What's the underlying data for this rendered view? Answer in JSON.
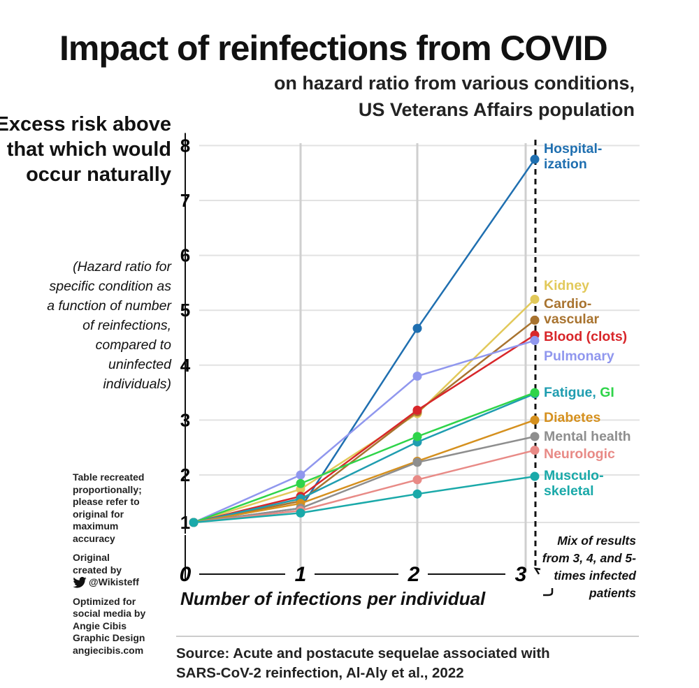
{
  "header": {
    "title": "Impact of reinfections from COVID",
    "subtitle_lines": [
      "on hazard ratio from various conditions,",
      "US Veterans Affairs population"
    ]
  },
  "notes": {
    "recreated": "Table recreated proportionally; please refer to original for maximum accuracy",
    "original_line1": "Original created by",
    "twitter_handle": "@Wikisteff",
    "optimized": "Optimized for social media by Angie Cibis Graphic Design angiecibis.com",
    "mix": "Mix of results from 3, 4, and 5-times infected patients",
    "source": "Source: Acute and postacute sequelae associated with SARS-CoV-2 reinfection, Al-Aly et al., 2022"
  },
  "icons": {
    "twitter": "twitter-bird-icon"
  },
  "chart_data": {
    "type": "line",
    "title": "Impact of reinfections from COVID",
    "ylabel": "Excess risk above that which would occur naturally",
    "ylabel_note": "(Hazard ratio for specific condition as a function of number of reinfections, compared to uninfected individuals)",
    "xlabel": "Number of infections per individual",
    "x": [
      0,
      1,
      2,
      3
    ],
    "x_ticks": [
      "0",
      "1",
      "2",
      "3"
    ],
    "y_ticks": [
      "1",
      "2",
      "3",
      "4",
      "5",
      "6",
      "7",
      "8"
    ],
    "ylim": [
      1,
      8
    ],
    "grid": true,
    "legend_placement": "right (inline labels)",
    "series": [
      {
        "name": "Hospital-ization",
        "color": "#1f6fb0",
        "values": [
          1,
          1.3,
          4.67,
          7.75
        ]
      },
      {
        "name": "Kidney",
        "color": "#e2c95a",
        "values": [
          1,
          1.7,
          3.12,
          5.2
        ]
      },
      {
        "name": "Cardio-vascular",
        "color": "#a8732f",
        "values": [
          1,
          1.45,
          3.15,
          4.82
        ]
      },
      {
        "name": "Blood (clots)",
        "color": "#d8262a",
        "values": [
          1,
          1.55,
          3.18,
          4.55
        ]
      },
      {
        "name": "Pulmonary",
        "color": "#9097ee",
        "values": [
          1,
          2.0,
          3.8,
          4.45
        ]
      },
      {
        "name": "Fatigue,",
        "color": "#1f9db0",
        "values": [
          1,
          1.5,
          2.6,
          3.48
        ]
      },
      {
        "name": "GI",
        "color": "#2fd44a",
        "values": [
          1,
          1.82,
          2.7,
          3.5
        ]
      },
      {
        "name": "Diabetes",
        "color": "#d5901e",
        "values": [
          1,
          1.4,
          2.25,
          3.0
        ]
      },
      {
        "name": "Mental health",
        "color": "#8e8e8e",
        "values": [
          1,
          1.3,
          2.23,
          2.7
        ]
      },
      {
        "name": "Neurologic",
        "color": "#e88a86",
        "values": [
          1,
          1.25,
          1.9,
          2.45
        ]
      },
      {
        "name": "Musculo-skeletal",
        "color": "#1aa9a9",
        "values": [
          1,
          1.2,
          1.6,
          1.97
        ]
      }
    ]
  }
}
